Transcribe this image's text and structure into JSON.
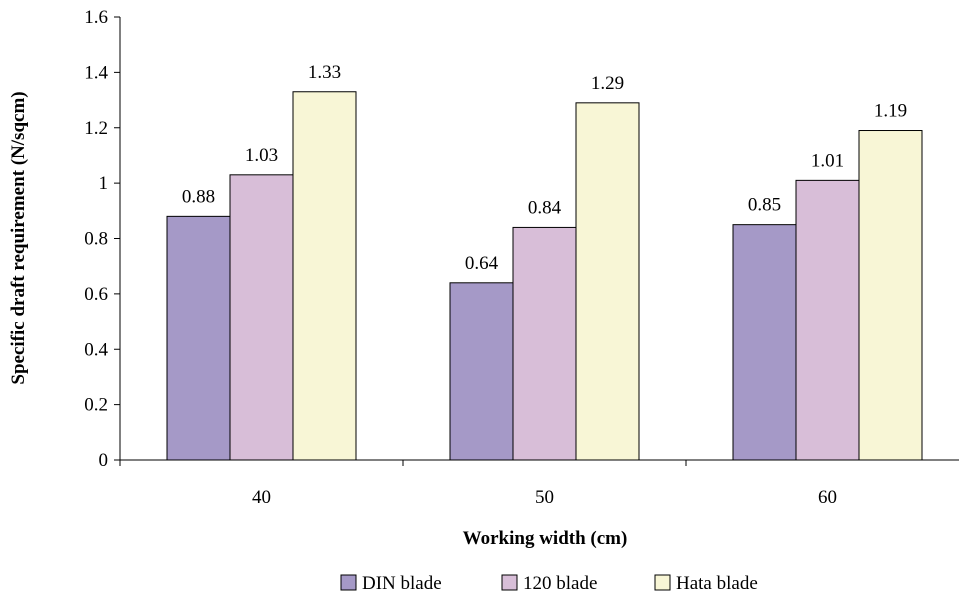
{
  "chart_data": {
    "type": "bar",
    "title": "",
    "xlabel": "Working width (cm)",
    "ylabel": "Specific draft requirement (N/sqcm)",
    "categories": [
      "40",
      "50",
      "60"
    ],
    "ylim": [
      0,
      1.6
    ],
    "yticks": [
      0,
      0.2,
      0.4,
      0.6,
      0.8,
      1,
      1.2,
      1.4,
      1.6
    ],
    "ytick_labels": [
      "0",
      "0.2",
      "0.4",
      "0.6",
      "0.8",
      "1",
      "1.2",
      "1.4",
      "1.6"
    ],
    "grid": false,
    "legend_position": "bottom",
    "series": [
      {
        "name": "DIN blade",
        "color": "#a599c7",
        "values": [
          0.88,
          0.64,
          0.85
        ],
        "labels": [
          "0.88",
          "0.64",
          "0.85"
        ]
      },
      {
        "name": "120 blade",
        "color": "#d8bed8",
        "values": [
          1.03,
          0.84,
          1.01
        ],
        "labels": [
          "1.03",
          "0.84",
          "1.01"
        ]
      },
      {
        "name": "Hata blade",
        "color": "#f8f6d6",
        "values": [
          1.33,
          1.29,
          1.19
        ],
        "labels": [
          "1.33",
          "1.29",
          "1.19"
        ]
      }
    ]
  }
}
